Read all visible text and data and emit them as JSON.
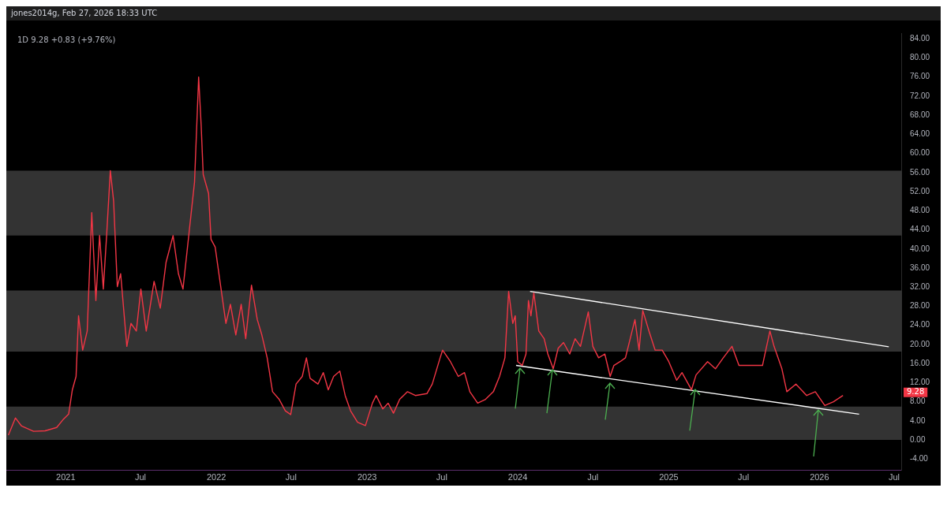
{
  "chart_data": {
    "type": "line",
    "title": "1D 9.28 +0.83 (+9.76%)",
    "subtitle": "jones2014g, Feb 27, 2026 18:33 UTC",
    "xlim": [
      "2020-08-10",
      "2026-07-20"
    ],
    "xticks": [
      {
        "value": "2021-01-01",
        "label": "2021"
      },
      {
        "value": "2021-07-01",
        "label": "Jul"
      },
      {
        "value": "2022-01-01",
        "label": "2022"
      },
      {
        "value": "2022-07-01",
        "label": "Jul"
      },
      {
        "value": "2023-01-01",
        "label": "2023"
      },
      {
        "value": "2023-07-01",
        "label": "Jul"
      },
      {
        "value": "2024-01-01",
        "label": "2024"
      },
      {
        "value": "2024-07-01",
        "label": "Jul"
      },
      {
        "value": "2025-01-01",
        "label": "2025"
      },
      {
        "value": "2025-07-01",
        "label": "Jul"
      },
      {
        "value": "2026-01-01",
        "label": "2026"
      },
      {
        "value": "2026-07-01",
        "label": "Jul"
      }
    ],
    "ylim": [
      -6.4,
      85.2
    ],
    "yticks": [
      {
        "value": -4,
        "label": "-4.00"
      },
      {
        "value": 0,
        "label": "0.00"
      },
      {
        "value": 4,
        "label": "4.00"
      },
      {
        "value": 8,
        "label": "8.00"
      },
      {
        "value": 12,
        "label": "12.00"
      },
      {
        "value": 16,
        "label": "16.00"
      },
      {
        "value": 20,
        "label": "20.00"
      },
      {
        "value": 24,
        "label": "24.00"
      },
      {
        "value": 28,
        "label": "28.00"
      },
      {
        "value": 32,
        "label": "32.00"
      },
      {
        "value": 36,
        "label": "36.00"
      },
      {
        "value": 40,
        "label": "40.00"
      },
      {
        "value": 44,
        "label": "44.00"
      },
      {
        "value": 48,
        "label": "48.00"
      },
      {
        "value": 52,
        "label": "52.00"
      },
      {
        "value": 56,
        "label": "56.00"
      },
      {
        "value": 60,
        "label": "60.00"
      },
      {
        "value": 64,
        "label": "64.00"
      },
      {
        "value": 68,
        "label": "68.00"
      },
      {
        "value": 72,
        "label": "72.00"
      },
      {
        "value": 76,
        "label": "76.00"
      },
      {
        "value": 80,
        "label": "80.00"
      },
      {
        "value": 84,
        "label": "84.00"
      }
    ],
    "grid": false,
    "legend": false,
    "marker": "none",
    "line_style": "solid",
    "bands": [
      {
        "axis": "y",
        "from": 0,
        "to": 7.0,
        "color": "#333333"
      },
      {
        "axis": "y",
        "from": 18.5,
        "to": 31.3,
        "color": "#333333"
      },
      {
        "axis": "y",
        "from": 42.8,
        "to": 56.4,
        "color": "#333333"
      }
    ],
    "annotations": [
      "9.28"
    ],
    "series": [
      {
        "color": "#f23645",
        "x": [
          "2020-08-15",
          "2020-09-01",
          "2020-09-16",
          "2020-10-15",
          "2020-11-12",
          "2020-12-10",
          "2020-12-25",
          "2021-01-08",
          "2021-01-17",
          "2021-01-26",
          "2021-02-01",
          "2021-02-11",
          "2021-02-22",
          "2021-03-05",
          "2021-03-15",
          "2021-03-24",
          "2021-04-02",
          "2021-04-10",
          "2021-04-19",
          "2021-04-27",
          "2021-05-06",
          "2021-05-14",
          "2021-05-29",
          "2021-06-08",
          "2021-06-21",
          "2021-07-02",
          "2021-07-15",
          "2021-08-03",
          "2021-08-18",
          "2021-09-01",
          "2021-09-18",
          "2021-10-01",
          "2021-10-12",
          "2021-10-27",
          "2021-11-09",
          "2021-11-19",
          "2021-11-25",
          "2021-11-30",
          "2021-12-13",
          "2021-12-19",
          "2021-12-29",
          "2022-01-11",
          "2022-01-24",
          "2022-02-04",
          "2022-02-17",
          "2022-03-02",
          "2022-03-13",
          "2022-03-27",
          "2022-04-10",
          "2022-04-21",
          "2022-05-04",
          "2022-05-17",
          "2022-06-02",
          "2022-06-17",
          "2022-06-30",
          "2022-07-13",
          "2022-07-28",
          "2022-08-07",
          "2022-08-16",
          "2022-09-04",
          "2022-09-17",
          "2022-09-29",
          "2022-10-12",
          "2022-10-27",
          "2022-11-09",
          "2022-11-22",
          "2022-12-09",
          "2022-12-28",
          "2023-01-14",
          "2023-01-23",
          "2023-02-08",
          "2023-02-21",
          "2023-03-06",
          "2023-03-21",
          "2023-04-09",
          "2023-04-28",
          "2023-05-26",
          "2023-06-08",
          "2023-06-27",
          "2023-07-03",
          "2023-07-22",
          "2023-08-10",
          "2023-08-25",
          "2023-09-07",
          "2023-09-26",
          "2023-10-15",
          "2023-11-03",
          "2023-11-18",
          "2023-12-01",
          "2023-12-10",
          "2023-12-20",
          "2023-12-26",
          "2024-01-01",
          "2024-01-12",
          "2024-01-21",
          "2024-01-27",
          "2024-02-02",
          "2024-02-09",
          "2024-02-21",
          "2024-03-05",
          "2024-03-14",
          "2024-03-27",
          "2024-04-08",
          "2024-04-21",
          "2024-05-06",
          "2024-05-19",
          "2024-06-01",
          "2024-06-20",
          "2024-07-01",
          "2024-07-15",
          "2024-07-30",
          "2024-08-12",
          "2024-08-21",
          "2024-09-05",
          "2024-09-18",
          "2024-10-11",
          "2024-10-21",
          "2024-10-30",
          "2024-11-14",
          "2024-11-29",
          "2024-12-16",
          "2025-01-01",
          "2025-01-20",
          "2025-02-02",
          "2025-02-25",
          "2025-03-08",
          "2025-04-05",
          "2025-04-24",
          "2025-05-13",
          "2025-06-03",
          "2025-06-20",
          "2025-07-18",
          "2025-08-16",
          "2025-09-03",
          "2025-09-13",
          "2025-10-02",
          "2025-10-14",
          "2025-11-05",
          "2025-12-01",
          "2025-12-22",
          "2026-01-14",
          "2026-02-04",
          "2026-02-27"
        ],
        "values": [
          1.0,
          4.6,
          2.9,
          1.8,
          1.9,
          2.6,
          4.2,
          5.4,
          10.5,
          13.3,
          26.0,
          18.8,
          22.8,
          47.6,
          29.2,
          42.8,
          31.6,
          42.8,
          56.4,
          50.0,
          32.1,
          34.8,
          19.6,
          24.4,
          22.8,
          31.6,
          22.8,
          33.2,
          27.6,
          37.2,
          42.8,
          34.8,
          31.6,
          43.6,
          54.0,
          76.0,
          66.0,
          55.6,
          51.6,
          42.0,
          40.4,
          32.4,
          24.4,
          28.4,
          22.0,
          28.4,
          21.2,
          32.4,
          25.2,
          22.0,
          17.2,
          10.1,
          8.5,
          6.1,
          5.3,
          11.7,
          13.3,
          17.2,
          12.9,
          11.7,
          14.1,
          10.5,
          13.3,
          14.4,
          9.3,
          6.1,
          3.7,
          3.0,
          7.7,
          9.3,
          6.5,
          7.7,
          5.6,
          8.5,
          10.1,
          9.3,
          9.7,
          11.7,
          17.2,
          18.8,
          16.4,
          13.3,
          14.1,
          10.1,
          7.7,
          8.5,
          10.1,
          13.3,
          17.2,
          31.1,
          24.4,
          26.0,
          16.4,
          15.6,
          18.0,
          29.2,
          26.0,
          30.8,
          22.8,
          21.2,
          18.0,
          14.9,
          19.2,
          20.4,
          18.0,
          21.2,
          19.6,
          26.8,
          19.6,
          17.2,
          18.0,
          13.3,
          15.6,
          16.4,
          17.2,
          25.2,
          18.8,
          27.1,
          22.8,
          18.8,
          18.8,
          16.4,
          12.5,
          14.1,
          10.5,
          13.6,
          16.4,
          14.9,
          17.2,
          19.6,
          15.6,
          15.6,
          15.6,
          22.8,
          19.6,
          14.9,
          10.1,
          11.7,
          9.3,
          10.1,
          7.2,
          8.0,
          9.3
        ]
      },
      {
        "color": "#ffffff",
        "x": [
          "2024-01-31",
          "2026-06-18"
        ],
        "values": [
          31.1,
          19.5
        ]
      },
      {
        "color": "#ffffff",
        "x": [
          "2023-12-28",
          "2026-04-07"
        ],
        "values": [
          15.6,
          5.4
        ]
      }
    ]
  }
}
